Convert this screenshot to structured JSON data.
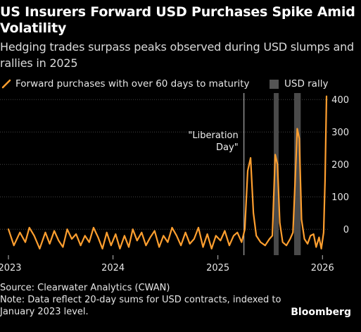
{
  "header": {
    "title": "US Insurers Forward USD Purchases Spike Amid Volatility",
    "subtitle": "Hedging trades surpass peaks observed during USD slumps and rallies in 2025"
  },
  "legend": {
    "series_label": "Forward purchases with over 60 days to maturity",
    "shade_label": "USD rally"
  },
  "footer": {
    "source": "Source: Clearwater Analytics (CWAN)",
    "note": "Note: Data reflect 20-day sums for USD contracts, indexed to January 2023 level.",
    "brand": "Bloomberg"
  },
  "colors": {
    "line": "#ff9f2f",
    "shade": "#4a4a4a",
    "grid": "#444444",
    "vline": "#cccccc"
  },
  "chart_data": {
    "type": "line",
    "x_axis": {
      "type": "date",
      "range": [
        "2023-01-01",
        "2026-01-20"
      ],
      "ticks": [
        "2023",
        "2024",
        "2025",
        "2026"
      ],
      "tick_dates": [
        "2023-01-01",
        "2024-01-01",
        "2025-01-01",
        "2026-01-01"
      ]
    },
    "y_axis": {
      "range": [
        -80,
        420
      ],
      "ticks": [
        0,
        100,
        200,
        300,
        400
      ],
      "position": "right"
    },
    "grid": true,
    "legend_position": "top",
    "shaded_periods": [
      {
        "start": "2025-07-15",
        "end": "2025-08-01"
      },
      {
        "start": "2025-09-24",
        "end": "2025-10-17"
      }
    ],
    "annotations": [
      {
        "label": "\"Liberation Day\"",
        "date": "2025-04-02"
      }
    ],
    "series": [
      {
        "name": "Forward purchases with over 60 days to maturity",
        "x": [
          "2023-01-01",
          "2023-01-20",
          "2023-02-10",
          "2023-03-01",
          "2023-03-15",
          "2023-04-01",
          "2023-04-20",
          "2023-05-10",
          "2023-05-25",
          "2023-06-10",
          "2023-06-25",
          "2023-07-10",
          "2023-07-25",
          "2023-08-10",
          "2023-08-25",
          "2023-09-10",
          "2023-09-25",
          "2023-10-10",
          "2023-10-25",
          "2023-11-10",
          "2023-11-25",
          "2023-12-10",
          "2023-12-25",
          "2024-01-10",
          "2024-01-25",
          "2024-02-10",
          "2024-02-25",
          "2024-03-10",
          "2024-03-25",
          "2024-04-10",
          "2024-04-25",
          "2024-05-10",
          "2024-05-25",
          "2024-06-10",
          "2024-06-25",
          "2024-07-10",
          "2024-07-25",
          "2024-08-10",
          "2024-08-25",
          "2024-09-10",
          "2024-09-25",
          "2024-10-10",
          "2024-10-25",
          "2024-11-10",
          "2024-11-25",
          "2024-12-10",
          "2024-12-25",
          "2025-01-10",
          "2025-01-25",
          "2025-02-10",
          "2025-02-25",
          "2025-03-10",
          "2025-03-25",
          "2025-04-05",
          "2025-04-15",
          "2025-04-25",
          "2025-05-05",
          "2025-05-15",
          "2025-05-30",
          "2025-06-15",
          "2025-06-30",
          "2025-07-10",
          "2025-07-20",
          "2025-07-28",
          "2025-08-05",
          "2025-08-15",
          "2025-08-28",
          "2025-09-10",
          "2025-09-20",
          "2025-09-28",
          "2025-10-05",
          "2025-10-12",
          "2025-10-20",
          "2025-10-30",
          "2025-11-10",
          "2025-11-20",
          "2025-12-01",
          "2025-12-10",
          "2025-12-20",
          "2025-12-28",
          "2026-01-05",
          "2026-01-10",
          "2026-01-15"
        ],
        "y": [
          0,
          -50,
          -10,
          -40,
          5,
          -20,
          -60,
          -10,
          -45,
          -5,
          -35,
          -55,
          0,
          -30,
          -15,
          -50,
          -20,
          -40,
          5,
          -25,
          -60,
          -10,
          -50,
          -15,
          -60,
          -20,
          -55,
          0,
          -35,
          -10,
          -50,
          -25,
          -5,
          -55,
          -20,
          -40,
          5,
          -20,
          -50,
          -10,
          -45,
          -30,
          5,
          -55,
          -15,
          -60,
          -20,
          -35,
          -5,
          -50,
          -20,
          -10,
          -40,
          0,
          180,
          220,
          50,
          -20,
          -40,
          -50,
          -30,
          -20,
          230,
          200,
          20,
          -40,
          -50,
          -30,
          -10,
          160,
          310,
          280,
          30,
          -30,
          -45,
          -20,
          -15,
          -55,
          -25,
          -60,
          -10,
          150,
          410
        ]
      }
    ]
  }
}
